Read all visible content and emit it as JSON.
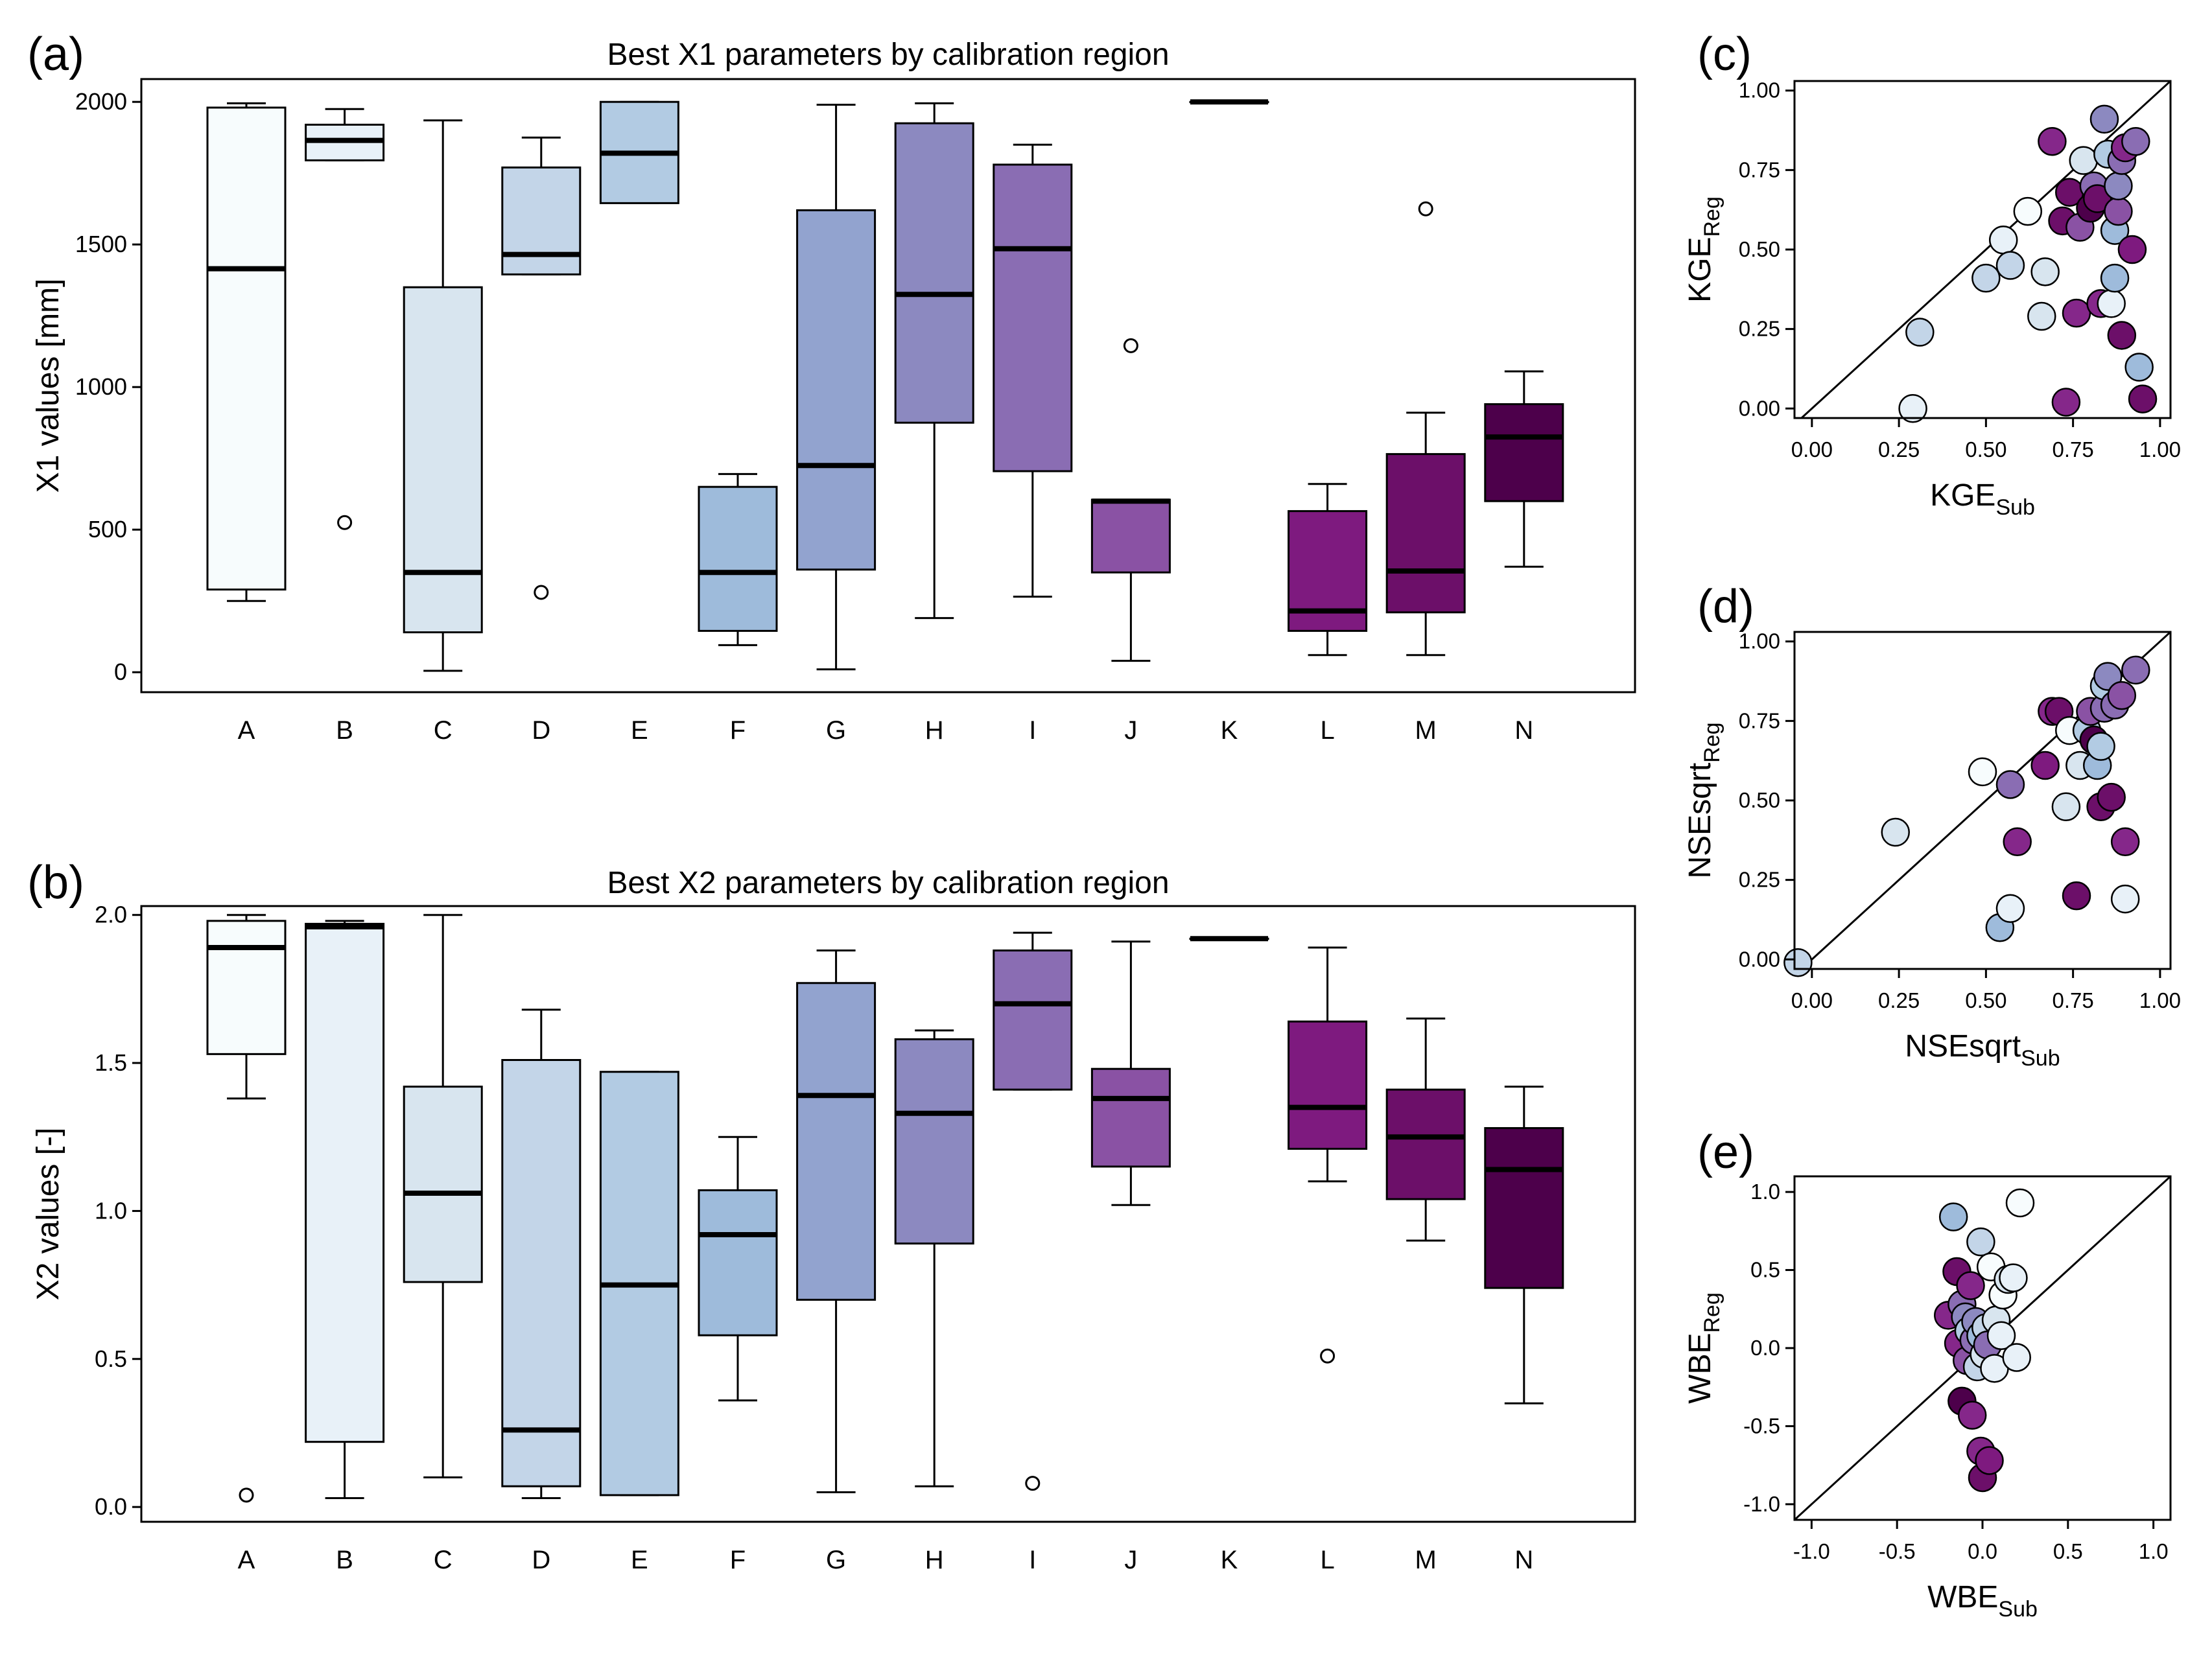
{
  "chart_data": [
    {
      "id": "a",
      "panel_label": "(a)",
      "type": "boxplot",
      "title": "Best X1 parameters by calibration region",
      "ylabel": "X1 values [mm]",
      "ylim": [
        -70,
        2080
      ],
      "yticks": [
        0,
        500,
        1000,
        1500,
        2000
      ],
      "ytick_labels": [
        "0",
        "500",
        "1000",
        "1500",
        "2000"
      ],
      "categories": [
        "A",
        "B",
        "C",
        "D",
        "E",
        "F",
        "G",
        "H",
        "I",
        "J",
        "K",
        "L",
        "M",
        "N"
      ],
      "fill_colors": [
        "#f7fcfd",
        "#e8f1f8",
        "#d8e5ef",
        "#c3d5e8",
        "#b2cbe3",
        "#9ebbdb",
        "#92a3cf",
        "#8c89c0",
        "#8a6db3",
        "#8a52a4",
        "#85278a",
        "#7e1a7f",
        "#6c0f69",
        "#4d004b"
      ],
      "boxes": [
        {
          "whisker_low": 250,
          "q1": 290,
          "median": 1415,
          "q3": 1980,
          "whisker_high": 1995,
          "outliers": []
        },
        {
          "whisker_low": 1795,
          "q1": 1795,
          "median": 1865,
          "q3": 1920,
          "whisker_high": 1975,
          "outliers": [
            525
          ]
        },
        {
          "whisker_low": 5,
          "q1": 140,
          "median": 350,
          "q3": 1350,
          "whisker_high": 1935,
          "outliers": []
        },
        {
          "whisker_low": 1395,
          "q1": 1395,
          "median": 1465,
          "q3": 1770,
          "whisker_high": 1875,
          "outliers": [
            280
          ]
        },
        {
          "whisker_low": 1645,
          "q1": 1645,
          "median": 1820,
          "q3": 2000,
          "whisker_high": 2000,
          "outliers": []
        },
        {
          "whisker_low": 95,
          "q1": 145,
          "median": 350,
          "q3": 650,
          "whisker_high": 695,
          "outliers": []
        },
        {
          "whisker_low": 10,
          "q1": 360,
          "median": 725,
          "q3": 1620,
          "whisker_high": 1990,
          "outliers": []
        },
        {
          "whisker_low": 190,
          "q1": 875,
          "median": 1325,
          "q3": 1925,
          "whisker_high": 1995,
          "outliers": []
        },
        {
          "whisker_low": 265,
          "q1": 705,
          "median": 1485,
          "q3": 1780,
          "whisker_high": 1850,
          "outliers": []
        },
        {
          "whisker_low": 40,
          "q1": 350,
          "median": 600,
          "q3": 605,
          "whisker_high": 605,
          "outliers": [
            1145
          ]
        },
        {
          "whisker_low": 2000,
          "q1": 2000,
          "median": 2000,
          "q3": 2000,
          "whisker_high": 2000,
          "outliers": []
        },
        {
          "whisker_low": 60,
          "q1": 145,
          "median": 215,
          "q3": 565,
          "whisker_high": 660,
          "outliers": []
        },
        {
          "whisker_low": 60,
          "q1": 210,
          "median": 355,
          "q3": 765,
          "whisker_high": 910,
          "outliers": [
            1625
          ]
        },
        {
          "whisker_low": 370,
          "q1": 600,
          "median": 825,
          "q3": 940,
          "whisker_high": 1055,
          "outliers": []
        }
      ]
    },
    {
      "id": "b",
      "panel_label": "(b)",
      "type": "boxplot",
      "title": "Best X2 parameters by calibration region",
      "ylabel": "X2 values [-]",
      "ylim": [
        -0.05,
        2.03
      ],
      "yticks": [
        0,
        0.5,
        1,
        1.5,
        2
      ],
      "ytick_labels": [
        "0.0",
        "0.5",
        "1.0",
        "1.5",
        "2.0"
      ],
      "categories": [
        "A",
        "B",
        "C",
        "D",
        "E",
        "F",
        "G",
        "H",
        "I",
        "J",
        "K",
        "L",
        "M",
        "N"
      ],
      "fill_colors": [
        "#f7fcfd",
        "#e8f1f8",
        "#d8e5ef",
        "#c3d5e8",
        "#b2cbe3",
        "#9ebbdb",
        "#92a3cf",
        "#8c89c0",
        "#8a6db3",
        "#8a52a4",
        "#85278a",
        "#7e1a7f",
        "#6c0f69",
        "#4d004b"
      ],
      "boxes": [
        {
          "whisker_low": 1.38,
          "q1": 1.53,
          "median": 1.89,
          "q3": 1.98,
          "whisker_high": 2.0,
          "outliers": [
            0.04
          ]
        },
        {
          "whisker_low": 0.03,
          "q1": 0.22,
          "median": 1.96,
          "q3": 1.97,
          "whisker_high": 1.98,
          "outliers": []
        },
        {
          "whisker_low": 0.1,
          "q1": 0.76,
          "median": 1.06,
          "q3": 1.42,
          "whisker_high": 2.0,
          "outliers": []
        },
        {
          "whisker_low": 0.03,
          "q1": 0.07,
          "median": 0.26,
          "q3": 1.51,
          "whisker_high": 1.68,
          "outliers": []
        },
        {
          "whisker_low": 0.04,
          "q1": 0.04,
          "median": 0.75,
          "q3": 1.47,
          "whisker_high": 1.47,
          "outliers": []
        },
        {
          "whisker_low": 0.36,
          "q1": 0.58,
          "median": 0.92,
          "q3": 1.07,
          "whisker_high": 1.25,
          "outliers": []
        },
        {
          "whisker_low": 0.05,
          "q1": 0.7,
          "median": 1.39,
          "q3": 1.77,
          "whisker_high": 1.88,
          "outliers": []
        },
        {
          "whisker_low": 0.07,
          "q1": 0.89,
          "median": 1.33,
          "q3": 1.58,
          "whisker_high": 1.61,
          "outliers": []
        },
        {
          "whisker_low": 1.41,
          "q1": 1.41,
          "median": 1.7,
          "q3": 1.88,
          "whisker_high": 1.94,
          "outliers": [
            0.08
          ]
        },
        {
          "whisker_low": 1.02,
          "q1": 1.15,
          "median": 1.38,
          "q3": 1.48,
          "whisker_high": 1.91,
          "outliers": []
        },
        {
          "whisker_low": 1.92,
          "q1": 1.92,
          "median": 1.92,
          "q3": 1.92,
          "whisker_high": 1.92,
          "outliers": []
        },
        {
          "whisker_low": 1.1,
          "q1": 1.21,
          "median": 1.35,
          "q3": 1.64,
          "whisker_high": 1.89,
          "outliers": [
            0.51
          ]
        },
        {
          "whisker_low": 0.9,
          "q1": 1.04,
          "median": 1.25,
          "q3": 1.41,
          "whisker_high": 1.65,
          "outliers": []
        },
        {
          "whisker_low": 0.35,
          "q1": 0.74,
          "median": 1.14,
          "q3": 1.28,
          "whisker_high": 1.42,
          "outliers": []
        }
      ]
    },
    {
      "id": "c",
      "panel_label": "(c)",
      "type": "scatter",
      "xlabel": "KGE",
      "xlabel_sub": "Sub",
      "ylabel": "KGE",
      "ylabel_sub": "Reg",
      "xlim": [
        -0.05,
        1.03
      ],
      "ylim": [
        -0.03,
        1.03
      ],
      "xticks": [
        0,
        0.25,
        0.5,
        0.75,
        1
      ],
      "xtick_labels": [
        "0.00",
        "0.25",
        "0.50",
        "0.75",
        "1.00"
      ],
      "yticks": [
        0,
        0.25,
        0.5,
        0.75,
        1
      ],
      "ytick_labels": [
        "0.00",
        "0.25",
        "0.50",
        "0.75",
        "1.00"
      ],
      "reference_line": "1:1",
      "points": [
        [
          0.29,
          0.0,
          "#e8f1f8"
        ],
        [
          0.31,
          0.24,
          "#c3d5e8"
        ],
        [
          0.5,
          0.41,
          "#c3d5e8"
        ],
        [
          0.55,
          0.53,
          "#e8f1f8"
        ],
        [
          0.57,
          0.45,
          "#c3d5e8"
        ],
        [
          0.62,
          0.62,
          "#f7fcfd"
        ],
        [
          0.66,
          0.29,
          "#d8e5ef"
        ],
        [
          0.67,
          0.43,
          "#d8e5ef"
        ],
        [
          0.69,
          0.84,
          "#85278a"
        ],
        [
          0.72,
          0.59,
          "#6c0f69"
        ],
        [
          0.73,
          0.02,
          "#85278a"
        ],
        [
          0.74,
          0.68,
          "#6c0f69"
        ],
        [
          0.76,
          0.3,
          "#85278a"
        ],
        [
          0.77,
          0.57,
          "#8a52a4"
        ],
        [
          0.78,
          0.78,
          "#d8e5ef"
        ],
        [
          0.8,
          0.63,
          "#4d004b"
        ],
        [
          0.81,
          0.7,
          "#8a6db3"
        ],
        [
          0.82,
          0.66,
          "#6c0f69"
        ],
        [
          0.83,
          0.33,
          "#85278a"
        ],
        [
          0.84,
          0.91,
          "#8c89c0"
        ],
        [
          0.85,
          0.8,
          "#b2cbe3"
        ],
        [
          0.86,
          0.33,
          "#e8f1f8"
        ],
        [
          0.87,
          0.56,
          "#9ebbdb"
        ],
        [
          0.87,
          0.41,
          "#9ebbdb"
        ],
        [
          0.88,
          0.62,
          "#8a52a4"
        ],
        [
          0.88,
          0.7,
          "#8c89c0"
        ],
        [
          0.89,
          0.78,
          "#8a6db3"
        ],
        [
          0.89,
          0.23,
          "#6c0f69"
        ],
        [
          0.9,
          0.82,
          "#85278a"
        ],
        [
          0.92,
          0.5,
          "#7e1a7f"
        ],
        [
          0.93,
          0.84,
          "#8a6db3"
        ],
        [
          0.94,
          0.13,
          "#9ebbdb"
        ],
        [
          0.95,
          0.03,
          "#6c0f69"
        ]
      ]
    },
    {
      "id": "d",
      "panel_label": "(d)",
      "type": "scatter",
      "xlabel": "NSEsqrt",
      "xlabel_sub": "Sub",
      "ylabel": "NSEsqrt",
      "ylabel_sub": "Reg",
      "xlim": [
        -0.05,
        1.03
      ],
      "ylim": [
        -0.03,
        1.03
      ],
      "xticks": [
        0,
        0.25,
        0.5,
        0.75,
        1
      ],
      "xtick_labels": [
        "0.00",
        "0.25",
        "0.50",
        "0.75",
        "1.00"
      ],
      "yticks": [
        0,
        0.25,
        0.5,
        0.75,
        1
      ],
      "ytick_labels": [
        "0.00",
        "0.25",
        "0.50",
        "0.75",
        "1.00"
      ],
      "reference_line": "1:1",
      "points": [
        [
          -0.04,
          -0.01,
          "#c3d5e8"
        ],
        [
          0.24,
          0.4,
          "#d8e5ef"
        ],
        [
          0.49,
          0.59,
          "#f7fcfd"
        ],
        [
          0.54,
          0.1,
          "#9ebbdb"
        ],
        [
          0.57,
          0.16,
          "#e8f1f8"
        ],
        [
          0.57,
          0.55,
          "#8a6db3"
        ],
        [
          0.59,
          0.37,
          "#85278a"
        ],
        [
          0.67,
          0.61,
          "#7e1a7f"
        ],
        [
          0.69,
          0.78,
          "#85278a"
        ],
        [
          0.71,
          0.78,
          "#6c0f69"
        ],
        [
          0.73,
          0.48,
          "#d8e5ef"
        ],
        [
          0.74,
          0.72,
          "#f7fcfd"
        ],
        [
          0.76,
          0.2,
          "#6c0f69"
        ],
        [
          0.77,
          0.61,
          "#d8e5ef"
        ],
        [
          0.79,
          0.72,
          "#b2cbe3"
        ],
        [
          0.8,
          0.78,
          "#8a52a4"
        ],
        [
          0.81,
          0.69,
          "#4d004b"
        ],
        [
          0.82,
          0.61,
          "#9ebbdb"
        ],
        [
          0.83,
          0.67,
          "#b2cbe3"
        ],
        [
          0.83,
          0.48,
          "#6c0f69"
        ],
        [
          0.84,
          0.79,
          "#8a6db3"
        ],
        [
          0.84,
          0.86,
          "#b2cbe3"
        ],
        [
          0.85,
          0.89,
          "#8c89c0"
        ],
        [
          0.86,
          0.51,
          "#6c0f69"
        ],
        [
          0.87,
          0.8,
          "#8a6db3"
        ],
        [
          0.89,
          0.83,
          "#8a52a4"
        ],
        [
          0.9,
          0.37,
          "#85278a"
        ],
        [
          0.9,
          0.19,
          "#e8f1f8"
        ],
        [
          0.93,
          0.91,
          "#8a6db3"
        ]
      ]
    },
    {
      "id": "e",
      "panel_label": "(e)",
      "type": "scatter",
      "xlabel": "WBE",
      "xlabel_sub": "Sub",
      "ylabel": "WBE",
      "ylabel_sub": "Reg",
      "xlim": [
        -1.1,
        1.1
      ],
      "ylim": [
        -1.1,
        1.1
      ],
      "xticks": [
        -1,
        -0.5,
        0,
        0.5,
        1
      ],
      "xtick_labels": [
        "-1.0",
        "-0.5",
        "0.0",
        "0.5",
        "1.0"
      ],
      "yticks": [
        -1,
        -0.5,
        0,
        0.5,
        1
      ],
      "ytick_labels": [
        "-1.0",
        "-0.5",
        "0.0",
        "0.5",
        "1.0"
      ],
      "reference_line": "1:1",
      "points": [
        [
          -0.2,
          0.21,
          "#85278a"
        ],
        [
          -0.17,
          0.84,
          "#9ebbdb"
        ],
        [
          -0.15,
          0.49,
          "#6c0f69"
        ],
        [
          -0.14,
          0.03,
          "#85278a"
        ],
        [
          -0.12,
          -0.34,
          "#4d004b"
        ],
        [
          -0.12,
          0.28,
          "#8a6db3"
        ],
        [
          -0.1,
          0.2,
          "#8c89c0"
        ],
        [
          -0.09,
          -0.08,
          "#8a52a4"
        ],
        [
          -0.08,
          0.11,
          "#b2cbe3"
        ],
        [
          -0.07,
          0.4,
          "#85278a"
        ],
        [
          -0.06,
          -0.43,
          "#85278a"
        ],
        [
          -0.05,
          0.05,
          "#8a6db3"
        ],
        [
          -0.04,
          0.17,
          "#8c89c0"
        ],
        [
          -0.03,
          -0.12,
          "#c3d5e8"
        ],
        [
          -0.01,
          -0.66,
          "#85278a"
        ],
        [
          -0.01,
          0.08,
          "#9ebbdb"
        ],
        [
          -0.01,
          0.68,
          "#c3d5e8"
        ],
        [
          0.0,
          -0.83,
          "#6c0f69"
        ],
        [
          0.01,
          -0.04,
          "#d8e5ef"
        ],
        [
          0.02,
          0.13,
          "#c3d5e8"
        ],
        [
          0.03,
          0.02,
          "#8a6db3"
        ],
        [
          0.04,
          -0.72,
          "#7e1a7f"
        ],
        [
          0.05,
          0.52,
          "#f7fcfd"
        ],
        [
          0.07,
          -0.13,
          "#e8f1f8"
        ],
        [
          0.08,
          0.18,
          "#d8e5ef"
        ],
        [
          0.11,
          0.08,
          "#e8f1f8"
        ],
        [
          0.12,
          0.34,
          "#f7fcfd"
        ],
        [
          0.15,
          0.44,
          "#d8e5ef"
        ],
        [
          0.18,
          0.45,
          "#e8f1f8"
        ],
        [
          0.2,
          -0.06,
          "#e8f1f8"
        ],
        [
          0.22,
          0.93,
          "#f7fcfd"
        ]
      ]
    }
  ]
}
